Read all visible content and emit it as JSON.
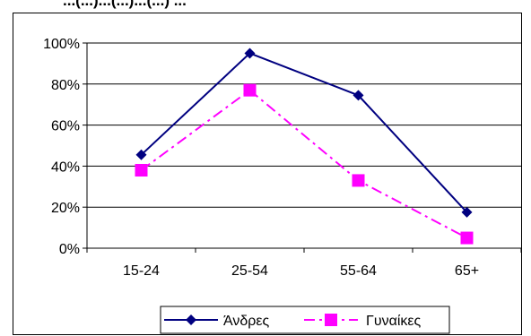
{
  "clipped_title": "...(...)...(...)...(...) ...",
  "chart_data": {
    "type": "line",
    "title": "",
    "xlabel": "",
    "ylabel": "",
    "categories": [
      "15-24",
      "25-54",
      "55-64",
      "65+"
    ],
    "ylim": [
      0,
      100
    ],
    "yticks": [
      "0%",
      "20%",
      "40%",
      "60%",
      "80%",
      "100%"
    ],
    "grid": "horizontal major gridlines",
    "legend_position": "bottom",
    "series": [
      {
        "name": "Άνδρες",
        "values": [
          45.5,
          95.0,
          74.5,
          17.5
        ],
        "color": "#000080",
        "line": "solid",
        "marker": "diamond"
      },
      {
        "name": "Γυναίκες",
        "values": [
          38.0,
          77.0,
          33.0,
          5.0
        ],
        "color": "#FF00FF",
        "line": "dash-dot",
        "marker": "square"
      }
    ]
  }
}
